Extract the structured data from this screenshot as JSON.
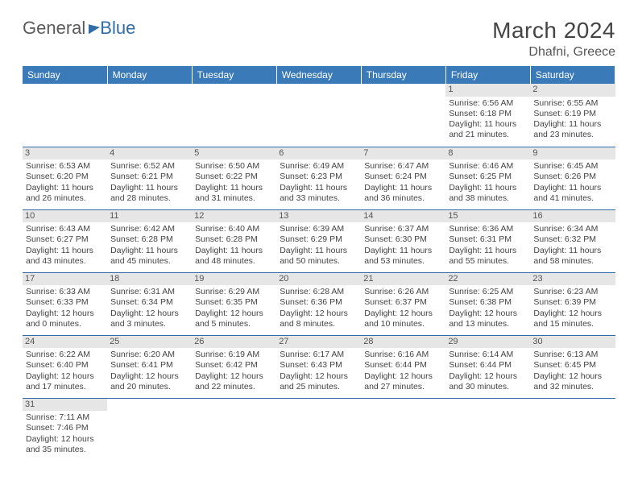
{
  "brand": {
    "part1": "General",
    "part2": "Blue"
  },
  "title": "March 2024",
  "location": "Dhafni, Greece",
  "colors": {
    "header_bg": "#3a7ab8",
    "border": "#2f6ca8",
    "daynum_bg": "#e6e6e6",
    "text": "#444444"
  },
  "weekdays": [
    "Sunday",
    "Monday",
    "Tuesday",
    "Wednesday",
    "Thursday",
    "Friday",
    "Saturday"
  ],
  "weeks": [
    [
      null,
      null,
      null,
      null,
      null,
      {
        "n": "1",
        "sr": "Sunrise: 6:56 AM",
        "ss": "Sunset: 6:18 PM",
        "d1": "Daylight: 11 hours",
        "d2": "and 21 minutes."
      },
      {
        "n": "2",
        "sr": "Sunrise: 6:55 AM",
        "ss": "Sunset: 6:19 PM",
        "d1": "Daylight: 11 hours",
        "d2": "and 23 minutes."
      }
    ],
    [
      {
        "n": "3",
        "sr": "Sunrise: 6:53 AM",
        "ss": "Sunset: 6:20 PM",
        "d1": "Daylight: 11 hours",
        "d2": "and 26 minutes."
      },
      {
        "n": "4",
        "sr": "Sunrise: 6:52 AM",
        "ss": "Sunset: 6:21 PM",
        "d1": "Daylight: 11 hours",
        "d2": "and 28 minutes."
      },
      {
        "n": "5",
        "sr": "Sunrise: 6:50 AM",
        "ss": "Sunset: 6:22 PM",
        "d1": "Daylight: 11 hours",
        "d2": "and 31 minutes."
      },
      {
        "n": "6",
        "sr": "Sunrise: 6:49 AM",
        "ss": "Sunset: 6:23 PM",
        "d1": "Daylight: 11 hours",
        "d2": "and 33 minutes."
      },
      {
        "n": "7",
        "sr": "Sunrise: 6:47 AM",
        "ss": "Sunset: 6:24 PM",
        "d1": "Daylight: 11 hours",
        "d2": "and 36 minutes."
      },
      {
        "n": "8",
        "sr": "Sunrise: 6:46 AM",
        "ss": "Sunset: 6:25 PM",
        "d1": "Daylight: 11 hours",
        "d2": "and 38 minutes."
      },
      {
        "n": "9",
        "sr": "Sunrise: 6:45 AM",
        "ss": "Sunset: 6:26 PM",
        "d1": "Daylight: 11 hours",
        "d2": "and 41 minutes."
      }
    ],
    [
      {
        "n": "10",
        "sr": "Sunrise: 6:43 AM",
        "ss": "Sunset: 6:27 PM",
        "d1": "Daylight: 11 hours",
        "d2": "and 43 minutes."
      },
      {
        "n": "11",
        "sr": "Sunrise: 6:42 AM",
        "ss": "Sunset: 6:28 PM",
        "d1": "Daylight: 11 hours",
        "d2": "and 45 minutes."
      },
      {
        "n": "12",
        "sr": "Sunrise: 6:40 AM",
        "ss": "Sunset: 6:28 PM",
        "d1": "Daylight: 11 hours",
        "d2": "and 48 minutes."
      },
      {
        "n": "13",
        "sr": "Sunrise: 6:39 AM",
        "ss": "Sunset: 6:29 PM",
        "d1": "Daylight: 11 hours",
        "d2": "and 50 minutes."
      },
      {
        "n": "14",
        "sr": "Sunrise: 6:37 AM",
        "ss": "Sunset: 6:30 PM",
        "d1": "Daylight: 11 hours",
        "d2": "and 53 minutes."
      },
      {
        "n": "15",
        "sr": "Sunrise: 6:36 AM",
        "ss": "Sunset: 6:31 PM",
        "d1": "Daylight: 11 hours",
        "d2": "and 55 minutes."
      },
      {
        "n": "16",
        "sr": "Sunrise: 6:34 AM",
        "ss": "Sunset: 6:32 PM",
        "d1": "Daylight: 11 hours",
        "d2": "and 58 minutes."
      }
    ],
    [
      {
        "n": "17",
        "sr": "Sunrise: 6:33 AM",
        "ss": "Sunset: 6:33 PM",
        "d1": "Daylight: 12 hours",
        "d2": "and 0 minutes."
      },
      {
        "n": "18",
        "sr": "Sunrise: 6:31 AM",
        "ss": "Sunset: 6:34 PM",
        "d1": "Daylight: 12 hours",
        "d2": "and 3 minutes."
      },
      {
        "n": "19",
        "sr": "Sunrise: 6:29 AM",
        "ss": "Sunset: 6:35 PM",
        "d1": "Daylight: 12 hours",
        "d2": "and 5 minutes."
      },
      {
        "n": "20",
        "sr": "Sunrise: 6:28 AM",
        "ss": "Sunset: 6:36 PM",
        "d1": "Daylight: 12 hours",
        "d2": "and 8 minutes."
      },
      {
        "n": "21",
        "sr": "Sunrise: 6:26 AM",
        "ss": "Sunset: 6:37 PM",
        "d1": "Daylight: 12 hours",
        "d2": "and 10 minutes."
      },
      {
        "n": "22",
        "sr": "Sunrise: 6:25 AM",
        "ss": "Sunset: 6:38 PM",
        "d1": "Daylight: 12 hours",
        "d2": "and 13 minutes."
      },
      {
        "n": "23",
        "sr": "Sunrise: 6:23 AM",
        "ss": "Sunset: 6:39 PM",
        "d1": "Daylight: 12 hours",
        "d2": "and 15 minutes."
      }
    ],
    [
      {
        "n": "24",
        "sr": "Sunrise: 6:22 AM",
        "ss": "Sunset: 6:40 PM",
        "d1": "Daylight: 12 hours",
        "d2": "and 17 minutes."
      },
      {
        "n": "25",
        "sr": "Sunrise: 6:20 AM",
        "ss": "Sunset: 6:41 PM",
        "d1": "Daylight: 12 hours",
        "d2": "and 20 minutes."
      },
      {
        "n": "26",
        "sr": "Sunrise: 6:19 AM",
        "ss": "Sunset: 6:42 PM",
        "d1": "Daylight: 12 hours",
        "d2": "and 22 minutes."
      },
      {
        "n": "27",
        "sr": "Sunrise: 6:17 AM",
        "ss": "Sunset: 6:43 PM",
        "d1": "Daylight: 12 hours",
        "d2": "and 25 minutes."
      },
      {
        "n": "28",
        "sr": "Sunrise: 6:16 AM",
        "ss": "Sunset: 6:44 PM",
        "d1": "Daylight: 12 hours",
        "d2": "and 27 minutes."
      },
      {
        "n": "29",
        "sr": "Sunrise: 6:14 AM",
        "ss": "Sunset: 6:44 PM",
        "d1": "Daylight: 12 hours",
        "d2": "and 30 minutes."
      },
      {
        "n": "30",
        "sr": "Sunrise: 6:13 AM",
        "ss": "Sunset: 6:45 PM",
        "d1": "Daylight: 12 hours",
        "d2": "and 32 minutes."
      }
    ],
    [
      {
        "n": "31",
        "sr": "Sunrise: 7:11 AM",
        "ss": "Sunset: 7:46 PM",
        "d1": "Daylight: 12 hours",
        "d2": "and 35 minutes."
      },
      null,
      null,
      null,
      null,
      null,
      null
    ]
  ]
}
